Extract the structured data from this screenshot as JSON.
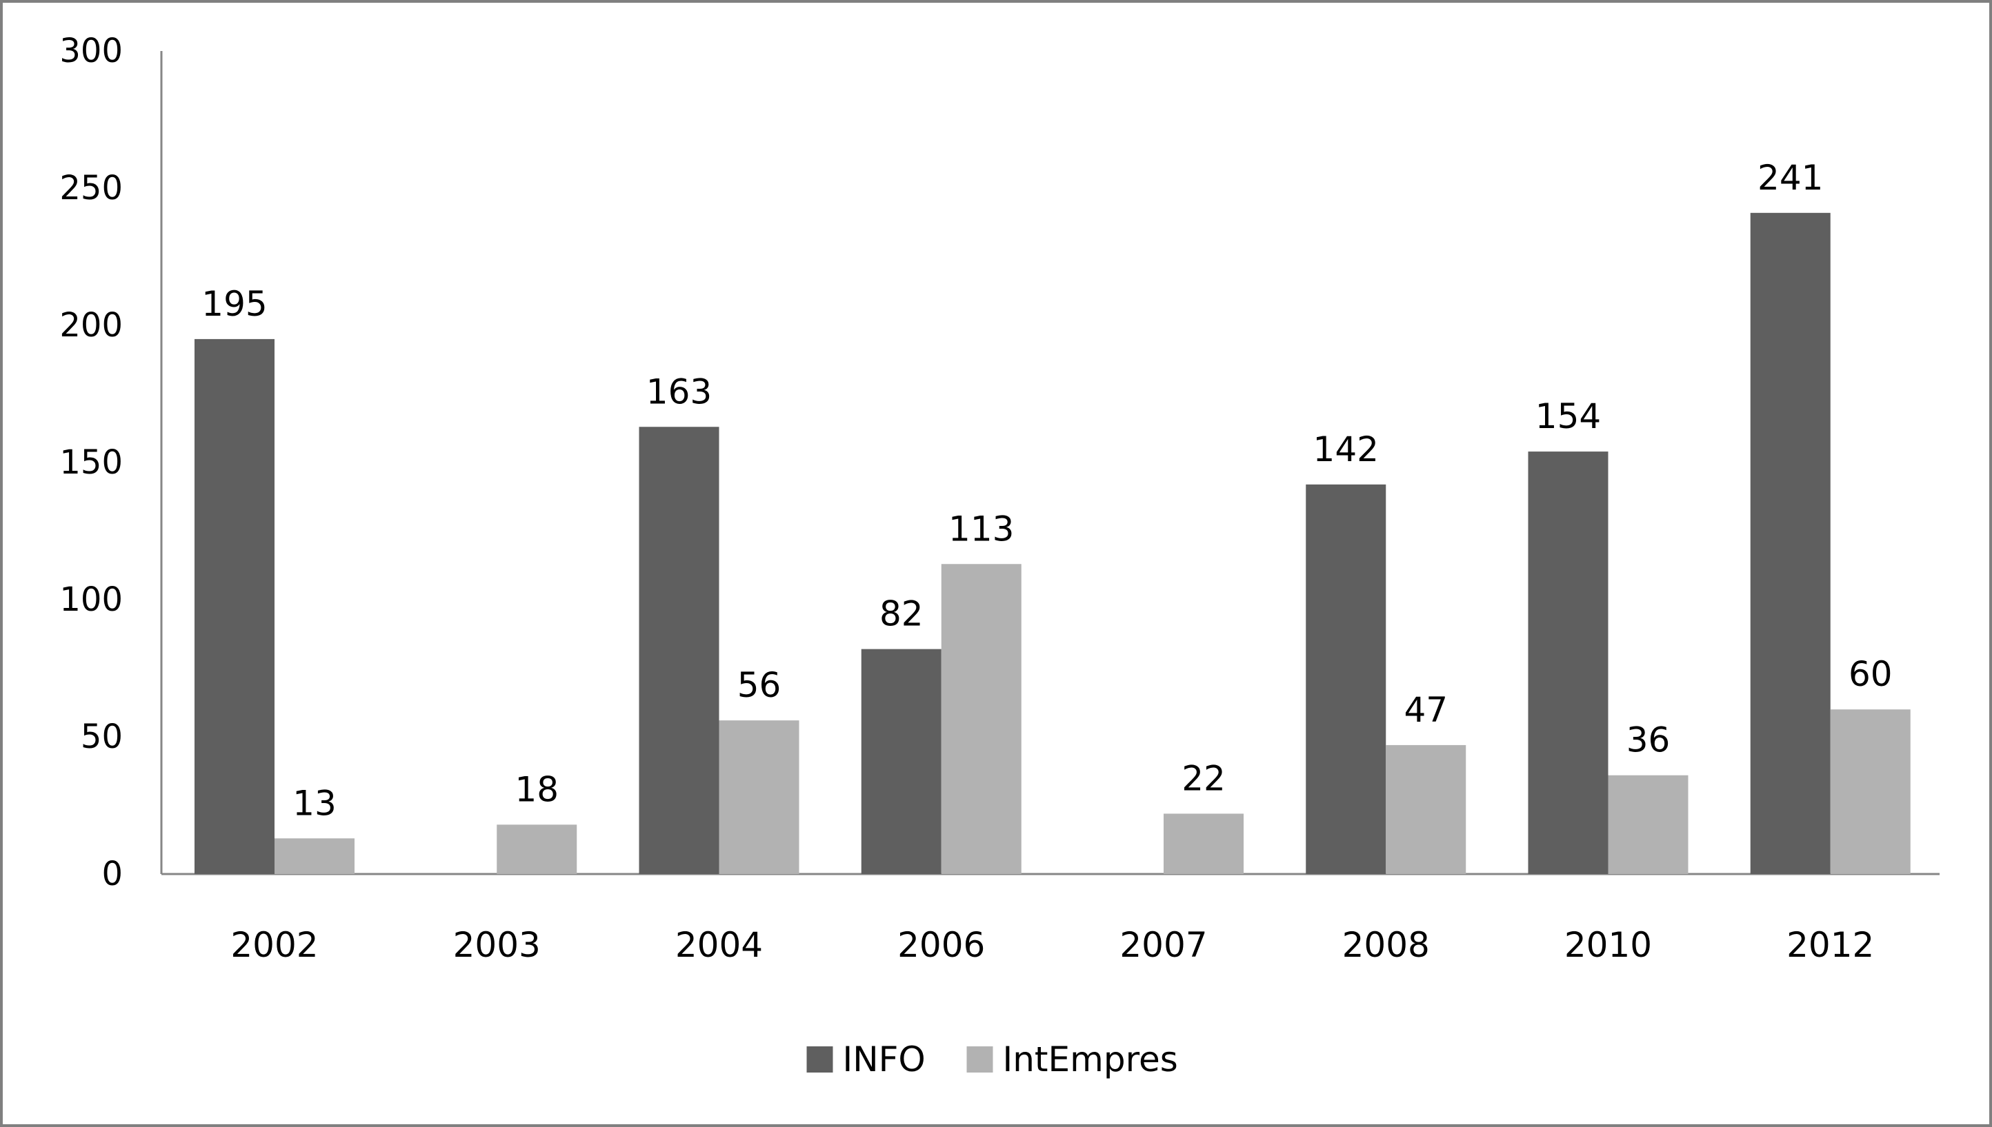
{
  "chart_data": {
    "type": "bar",
    "title": "",
    "xlabel": "",
    "ylabel": "",
    "categories": [
      "2002",
      "2003",
      "2004",
      "2006",
      "2007",
      "2008",
      "2010",
      "2012"
    ],
    "series": [
      {
        "name": "INFO",
        "color": "#5f5f5f",
        "values": [
          195,
          null,
          163,
          82,
          null,
          142,
          154,
          241
        ]
      },
      {
        "name": "IntEmpres",
        "color": "#b2b2b2",
        "values": [
          13,
          18,
          56,
          113,
          22,
          47,
          36,
          60
        ]
      }
    ],
    "ylim": [
      0,
      300
    ],
    "yticks": [
      0,
      50,
      100,
      150,
      200,
      250,
      300
    ],
    "grid": false,
    "data_labels": true,
    "legend_position": "bottom"
  }
}
